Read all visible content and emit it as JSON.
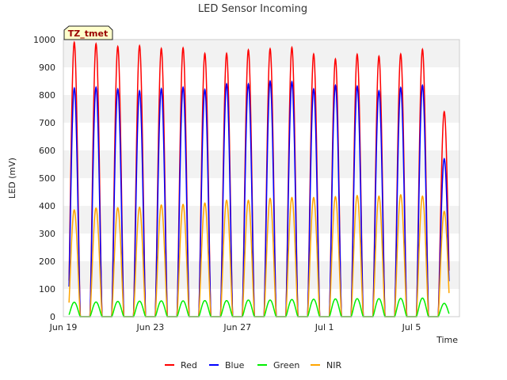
{
  "chart_data": {
    "type": "line",
    "title": "LED Sensor Incoming",
    "xlabel": "Time",
    "ylabel": "LED (mV)",
    "ylim": [
      0,
      1000
    ],
    "yticks": [
      0,
      100,
      200,
      300,
      400,
      500,
      600,
      700,
      800,
      900,
      1000
    ],
    "x_start": "Jun 19",
    "xlim_days": [
      0,
      18.2
    ],
    "xticks": [
      {
        "label": "Jun 19",
        "day": 0
      },
      {
        "label": "Jun 23",
        "day": 4
      },
      {
        "label": "Jun 27",
        "day": 8
      },
      {
        "label": "Jul 1",
        "day": 12
      },
      {
        "label": "Jul 5",
        "day": 16
      }
    ],
    "badge": "TZ_tmet",
    "grid": "horizontal bands",
    "legend_position": "bottom",
    "peak_days": [
      "Jun 19",
      "Jun 20",
      "Jun 21",
      "Jun 22",
      "Jun 23",
      "Jun 24",
      "Jun 25",
      "Jun 26",
      "Jun 27",
      "Jun 28",
      "Jun 29",
      "Jun 30",
      "Jul 1",
      "Jul 2",
      "Jul 3",
      "Jul 4",
      "Jul 5",
      "Jul 6"
    ],
    "series": [
      {
        "name": "Red",
        "color": "#ff0000",
        "peaks": [
          990,
          985,
          975,
          978,
          968,
          970,
          950,
          950,
          963,
          967,
          972,
          948,
          930,
          947,
          940,
          948,
          965,
          740
        ]
      },
      {
        "name": "Blue",
        "color": "#0000ff",
        "peaks": [
          825,
          828,
          822,
          815,
          823,
          828,
          820,
          840,
          840,
          850,
          848,
          822,
          835,
          832,
          815,
          827,
          835,
          570
        ]
      },
      {
        "name": "Green",
        "color": "#00ee00",
        "peaks": [
          52,
          53,
          55,
          56,
          57,
          57,
          58,
          58,
          60,
          60,
          62,
          63,
          64,
          65,
          65,
          66,
          67,
          48
        ]
      },
      {
        "name": "NIR",
        "color": "#ffa500",
        "peaks": [
          385,
          392,
          393,
          395,
          403,
          405,
          410,
          420,
          420,
          427,
          430,
          430,
          433,
          437,
          435,
          440,
          435,
          380
        ]
      }
    ]
  }
}
